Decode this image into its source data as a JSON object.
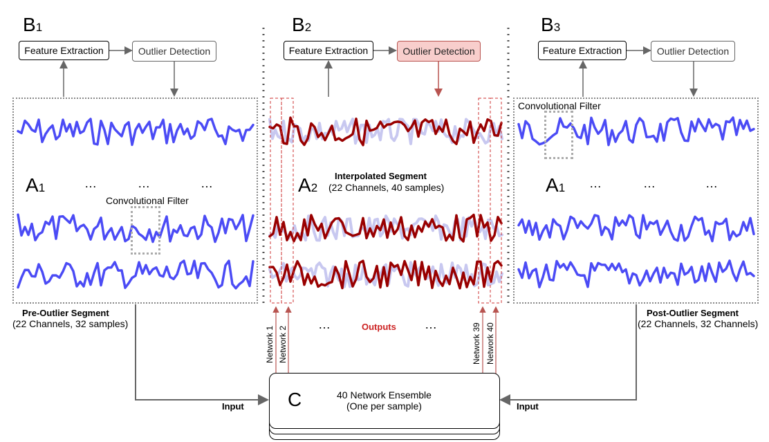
{
  "panels": {
    "b1": {
      "letter": "B",
      "sub": "1",
      "feature": "Feature Extraction",
      "outlier": "Outlier Detection"
    },
    "b2": {
      "letter": "B",
      "sub": "2",
      "feature": "Feature Extraction",
      "outlier": "Outlier Detection"
    },
    "b3": {
      "letter": "B",
      "sub": "3",
      "feature": "Feature Extraction",
      "outlier": "Outlier Detection"
    }
  },
  "segments": {
    "left": {
      "letter": "A",
      "sub": "1",
      "filter": "Convolutional Filter",
      "title": "Pre-Outlier Segment",
      "subtitle": "(22 Channels, 32 samples)"
    },
    "middle": {
      "letter": "A",
      "sub": "2",
      "title": "Interpolated Segment",
      "subtitle": "(22 Channels, 40 samples)"
    },
    "right": {
      "letter": "A",
      "sub": "1",
      "filter": "Convolutional Filter",
      "title": "Post-Outlier Segment",
      "subtitle": "(22 Channels, 32 Channels)"
    }
  },
  "ellipsis": "…",
  "networks": [
    "Network 1",
    "Network 2",
    "Network 39",
    "Network 40"
  ],
  "outputs_label": "Outputs",
  "ensemble": {
    "letter": "C",
    "line1": "40 Network Ensemble",
    "line2": "(One per sample)"
  },
  "input_label": "Input",
  "colors": {
    "blue": "#4b4bf5",
    "darkred": "#990000",
    "lightpurple": "#c8c8f0",
    "arrow": "#666666",
    "redarrow": "#b85450"
  }
}
